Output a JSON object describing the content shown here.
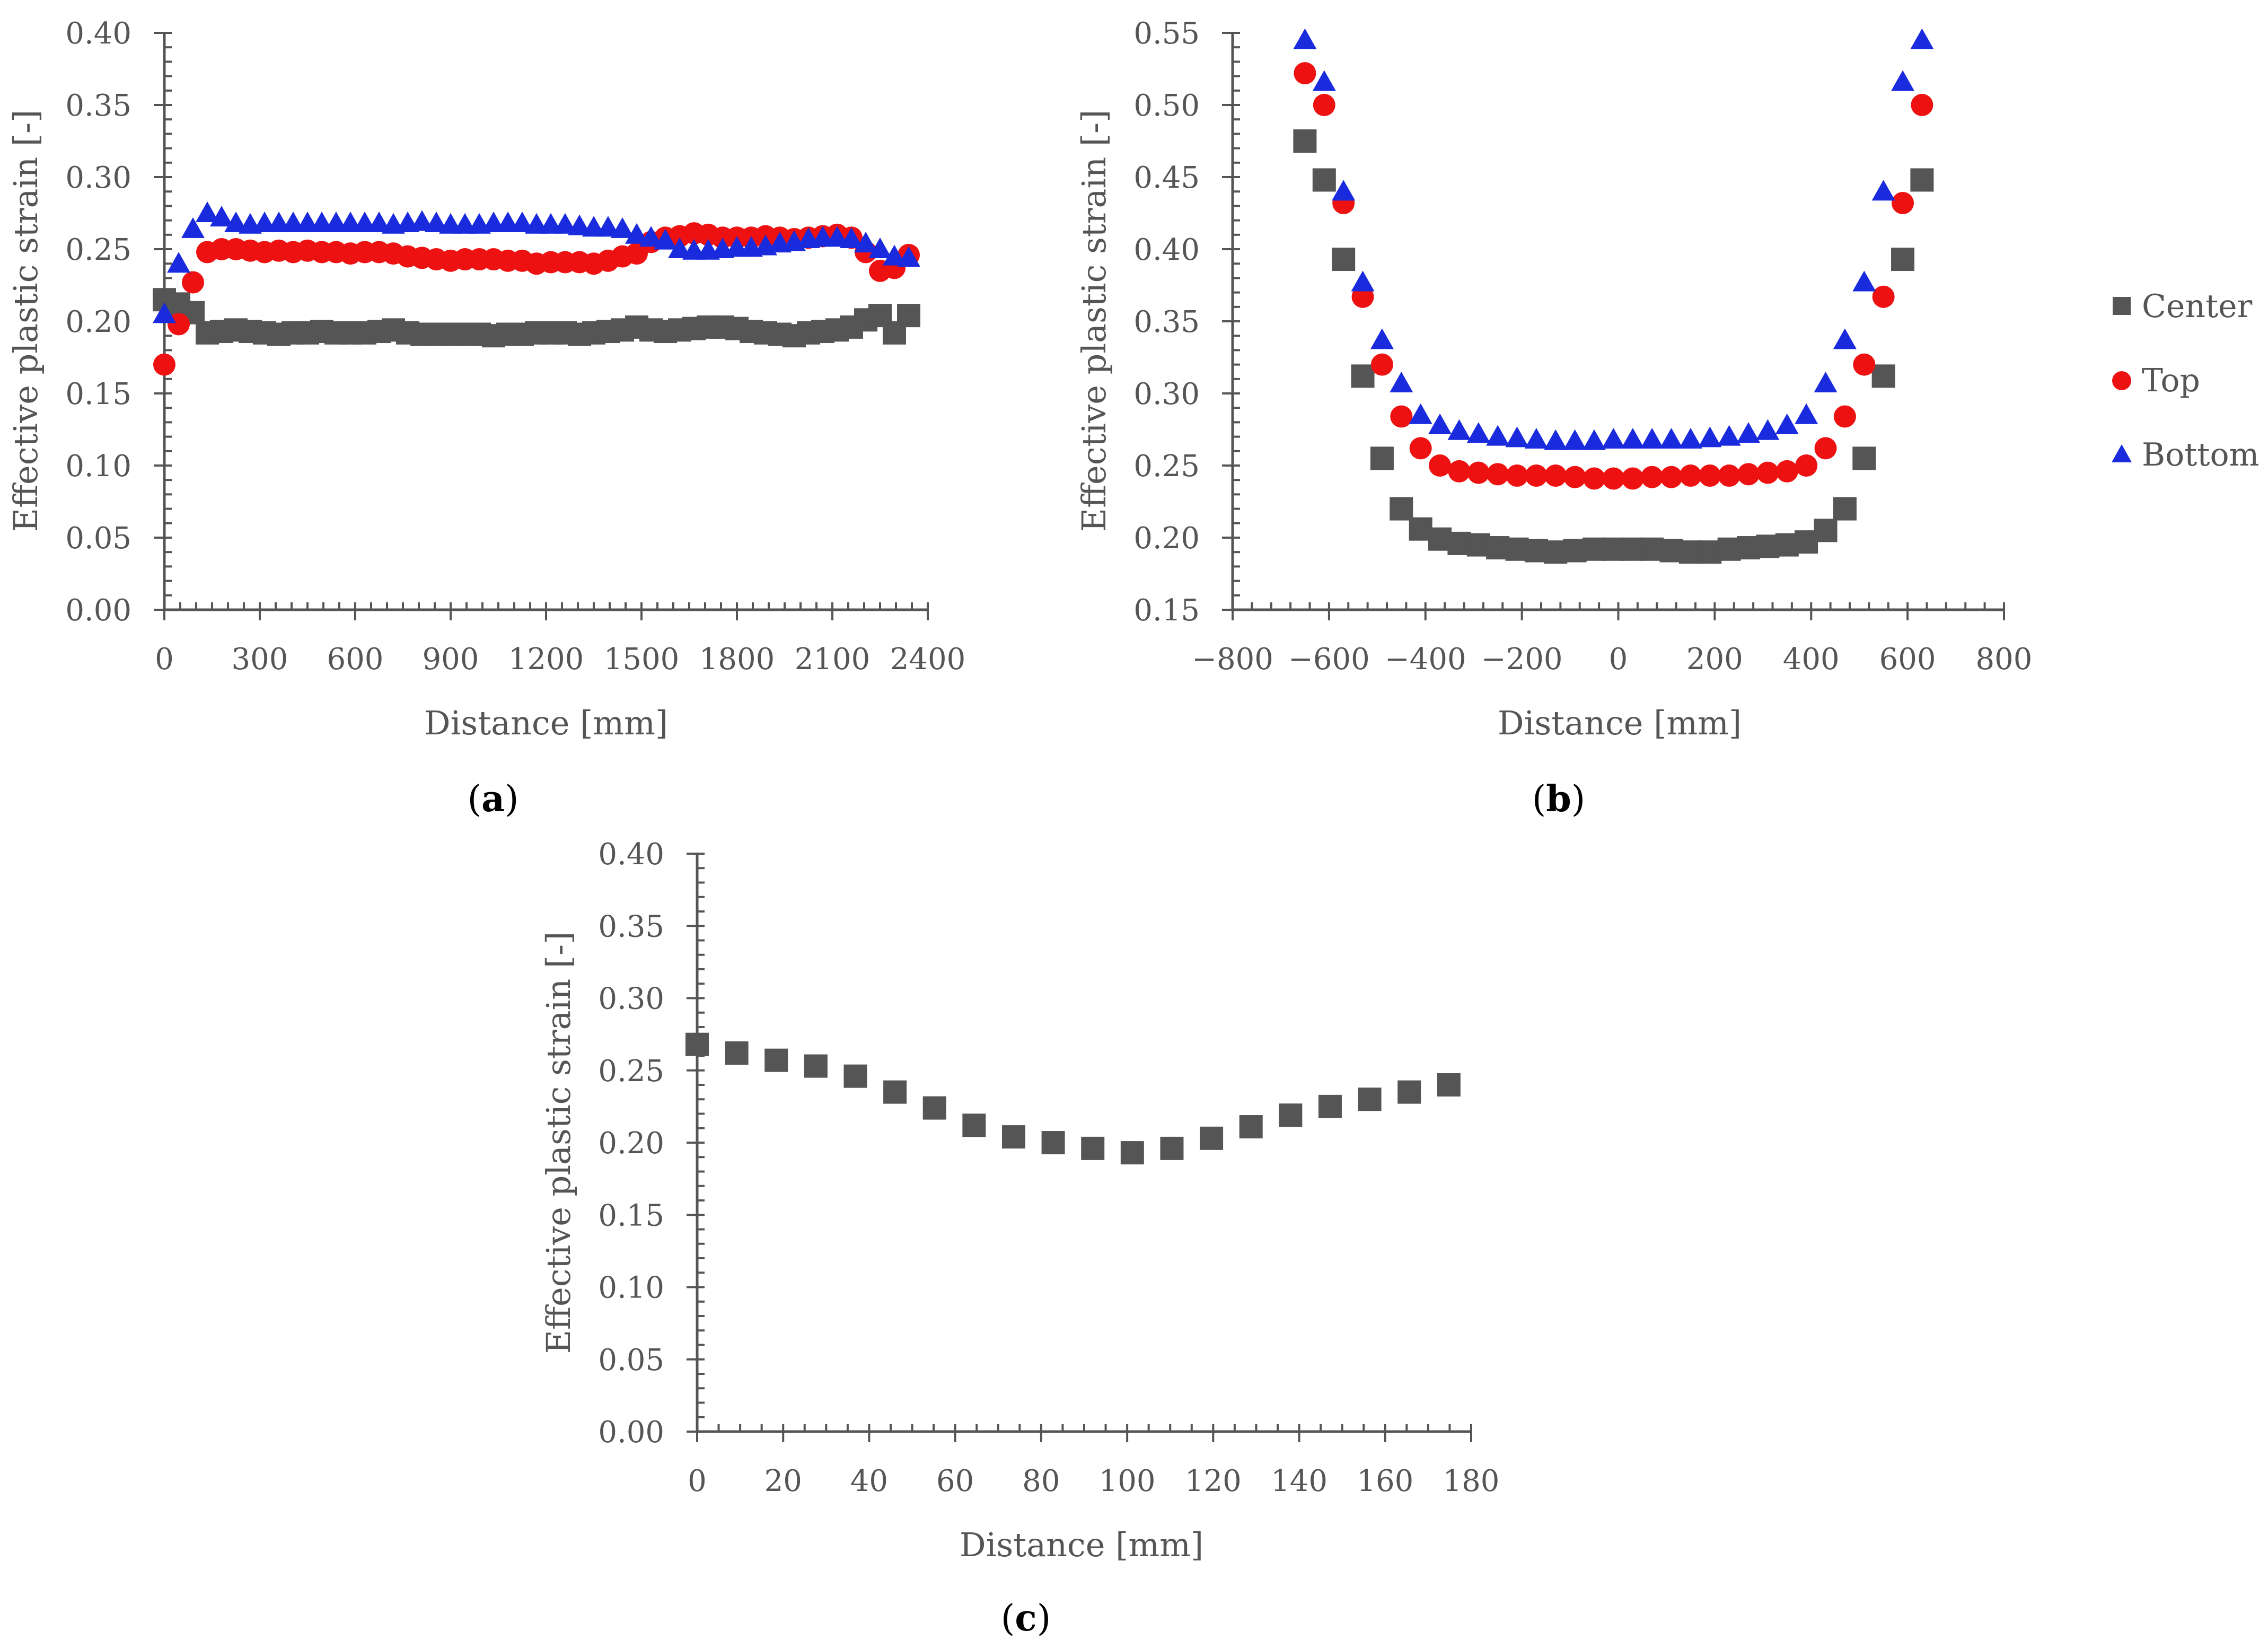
{
  "colors": {
    "center": "#555555",
    "top": "#ee1111",
    "bottom": "#1a2bdd",
    "axis": "#555555"
  },
  "legend": {
    "items": [
      {
        "key": "center",
        "label": "Center",
        "marker": "square"
      },
      {
        "key": "top",
        "label": "Top",
        "marker": "circle"
      },
      {
        "key": "bottom",
        "label": "Bottom",
        "marker": "triangle"
      }
    ]
  },
  "chart_data": [
    {
      "id": "a",
      "panel_label": "a",
      "type": "scatter",
      "xlabel": "Distance [mm]",
      "ylabel": "Effective plastic strain [-]",
      "xlim": [
        0,
        2400
      ],
      "ylim": [
        0.0,
        0.4
      ],
      "x_major_ticks": [
        0,
        300,
        600,
        900,
        1200,
        1500,
        1800,
        2100,
        2400
      ],
      "x_tick_labels": [
        "0",
        "300",
        "600",
        "900",
        "1200",
        "1500",
        "1800",
        "2100",
        "2400"
      ],
      "x_minor_step": 50,
      "y_major_ticks": [
        0.0,
        0.05,
        0.1,
        0.15,
        0.2,
        0.25,
        0.3,
        0.35,
        0.4
      ],
      "y_tick_labels": [
        "0.00",
        "0.05",
        "0.10",
        "0.15",
        "0.20",
        "0.25",
        "0.30",
        "0.35",
        "0.40"
      ],
      "y_minor_step": 0.01,
      "series": [
        {
          "name": "Center",
          "key": "center",
          "marker": "square",
          "x": [
            0,
            45,
            90,
            135,
            180,
            225,
            270,
            315,
            360,
            405,
            450,
            495,
            540,
            585,
            630,
            675,
            720,
            765,
            810,
            855,
            900,
            945,
            990,
            1035,
            1080,
            1125,
            1170,
            1215,
            1260,
            1305,
            1350,
            1395,
            1440,
            1485,
            1530,
            1575,
            1620,
            1665,
            1710,
            1755,
            1800,
            1845,
            1890,
            1935,
            1980,
            2025,
            2070,
            2115,
            2160,
            2205,
            2250,
            2295,
            2340
          ],
          "y": [
            0.215,
            0.212,
            0.206,
            0.192,
            0.193,
            0.194,
            0.193,
            0.192,
            0.191,
            0.192,
            0.192,
            0.193,
            0.192,
            0.192,
            0.192,
            0.193,
            0.194,
            0.192,
            0.191,
            0.191,
            0.191,
            0.191,
            0.191,
            0.19,
            0.191,
            0.191,
            0.192,
            0.192,
            0.192,
            0.191,
            0.192,
            0.193,
            0.194,
            0.196,
            0.194,
            0.193,
            0.194,
            0.195,
            0.196,
            0.196,
            0.195,
            0.193,
            0.192,
            0.191,
            0.19,
            0.192,
            0.193,
            0.194,
            0.196,
            0.201,
            0.204,
            0.192,
            0.204
          ]
        },
        {
          "name": "Top",
          "key": "top",
          "marker": "circle",
          "x": [
            0,
            45,
            90,
            135,
            180,
            225,
            270,
            315,
            360,
            405,
            450,
            495,
            540,
            585,
            630,
            675,
            720,
            765,
            810,
            855,
            900,
            945,
            990,
            1035,
            1080,
            1125,
            1170,
            1215,
            1260,
            1305,
            1350,
            1395,
            1440,
            1485,
            1530,
            1575,
            1620,
            1665,
            1710,
            1755,
            1800,
            1845,
            1890,
            1935,
            1980,
            2025,
            2070,
            2115,
            2160,
            2205,
            2250,
            2295,
            2340
          ],
          "y": [
            0.17,
            0.198,
            0.227,
            0.248,
            0.25,
            0.25,
            0.249,
            0.248,
            0.249,
            0.248,
            0.249,
            0.248,
            0.248,
            0.247,
            0.248,
            0.248,
            0.247,
            0.245,
            0.244,
            0.243,
            0.242,
            0.243,
            0.243,
            0.243,
            0.242,
            0.242,
            0.24,
            0.241,
            0.241,
            0.241,
            0.24,
            0.242,
            0.245,
            0.247,
            0.255,
            0.258,
            0.259,
            0.261,
            0.26,
            0.258,
            0.258,
            0.258,
            0.259,
            0.258,
            0.257,
            0.258,
            0.259,
            0.26,
            0.258,
            0.248,
            0.235,
            0.237,
            0.246
          ]
        },
        {
          "name": "Bottom",
          "key": "bottom",
          "marker": "triangle",
          "x": [
            0,
            45,
            90,
            135,
            180,
            225,
            270,
            315,
            360,
            405,
            450,
            495,
            540,
            585,
            630,
            675,
            720,
            765,
            810,
            855,
            900,
            945,
            990,
            1035,
            1080,
            1125,
            1170,
            1215,
            1260,
            1305,
            1350,
            1395,
            1440,
            1485,
            1530,
            1575,
            1620,
            1665,
            1710,
            1755,
            1800,
            1845,
            1890,
            1935,
            1980,
            2025,
            2070,
            2115,
            2160,
            2205,
            2250,
            2295,
            2340
          ],
          "y": [
            0.205,
            0.24,
            0.264,
            0.275,
            0.272,
            0.268,
            0.267,
            0.268,
            0.268,
            0.268,
            0.268,
            0.268,
            0.268,
            0.268,
            0.268,
            0.268,
            0.267,
            0.268,
            0.269,
            0.268,
            0.267,
            0.267,
            0.267,
            0.268,
            0.268,
            0.268,
            0.267,
            0.267,
            0.267,
            0.266,
            0.265,
            0.265,
            0.264,
            0.26,
            0.258,
            0.256,
            0.25,
            0.249,
            0.249,
            0.25,
            0.251,
            0.251,
            0.252,
            0.254,
            0.255,
            0.257,
            0.258,
            0.258,
            0.257,
            0.254,
            0.25,
            0.245,
            0.244
          ]
        }
      ]
    },
    {
      "id": "b",
      "panel_label": "b",
      "type": "scatter",
      "xlabel": "Distance [mm]",
      "ylabel": "Effective plastic strain [-]",
      "xlim": [
        -800,
        800
      ],
      "ylim": [
        0.15,
        0.55
      ],
      "x_major_ticks": [
        -800,
        -600,
        -400,
        -200,
        0,
        200,
        400,
        600,
        800
      ],
      "x_tick_labels": [
        "−800",
        "−600",
        "−400",
        "−200",
        "0",
        "200",
        "400",
        "600",
        "800"
      ],
      "x_minor_step": 40,
      "y_major_ticks": [
        0.15,
        0.2,
        0.25,
        0.3,
        0.35,
        0.4,
        0.45,
        0.5,
        0.55
      ],
      "y_tick_labels": [
        "0.15",
        "0.20",
        "0.25",
        "0.30",
        "0.35",
        "0.40",
        "0.45",
        "0.50",
        "0.55"
      ],
      "y_minor_step": 0.01,
      "series": [
        {
          "name": "Center",
          "key": "center",
          "marker": "square",
          "x": [
            -650,
            -610,
            -570,
            -530,
            -490,
            -450,
            -410,
            -370,
            -330,
            -290,
            -250,
            -210,
            -170,
            -130,
            -90,
            -50,
            -10,
            30,
            70,
            110,
            150,
            190,
            230,
            270,
            310,
            350,
            390,
            430,
            470,
            510,
            550,
            590,
            630
          ],
          "y": [
            0.475,
            0.448,
            0.393,
            0.312,
            0.255,
            0.22,
            0.206,
            0.199,
            0.196,
            0.195,
            0.193,
            0.192,
            0.191,
            0.19,
            0.191,
            0.192,
            0.192,
            0.192,
            0.192,
            0.191,
            0.19,
            0.19,
            0.192,
            0.193,
            0.194,
            0.195,
            0.197,
            0.205,
            0.22,
            0.255,
            0.312,
            0.393,
            0.448
          ]
        },
        {
          "name": "Top",
          "key": "top",
          "marker": "circle",
          "x": [
            -650,
            -610,
            -570,
            -530,
            -490,
            -450,
            -410,
            -370,
            -330,
            -290,
            -250,
            -210,
            -170,
            -130,
            -90,
            -50,
            -10,
            30,
            70,
            110,
            150,
            190,
            230,
            270,
            310,
            350,
            390,
            430,
            470,
            510,
            550,
            590,
            630
          ],
          "y": [
            0.522,
            0.5,
            0.432,
            0.367,
            0.32,
            0.284,
            0.262,
            0.25,
            0.246,
            0.245,
            0.244,
            0.243,
            0.243,
            0.243,
            0.242,
            0.241,
            0.241,
            0.241,
            0.242,
            0.242,
            0.243,
            0.243,
            0.243,
            0.244,
            0.245,
            0.246,
            0.25,
            0.262,
            0.284,
            0.32,
            0.367,
            0.432,
            0.5
          ]
        },
        {
          "name": "Bottom",
          "key": "bottom",
          "marker": "triangle",
          "x": [
            -650,
            -610,
            -570,
            -530,
            -490,
            -450,
            -410,
            -370,
            -330,
            -290,
            -250,
            -210,
            -170,
            -130,
            -90,
            -50,
            -10,
            30,
            70,
            110,
            150,
            190,
            230,
            270,
            310,
            350,
            390,
            430,
            470,
            510,
            550,
            590,
            630
          ],
          "y": [
            0.545,
            0.516,
            0.44,
            0.377,
            0.337,
            0.307,
            0.285,
            0.278,
            0.274,
            0.272,
            0.27,
            0.269,
            0.268,
            0.267,
            0.267,
            0.267,
            0.268,
            0.268,
            0.268,
            0.268,
            0.268,
            0.269,
            0.27,
            0.272,
            0.274,
            0.278,
            0.285,
            0.307,
            0.337,
            0.377,
            0.44,
            0.516,
            0.545
          ]
        }
      ]
    },
    {
      "id": "c",
      "panel_label": "c",
      "type": "scatter",
      "xlabel": "Distance [mm]",
      "ylabel": "Effective plastic strain [-]",
      "xlim": [
        0,
        180
      ],
      "ylim": [
        0.0,
        0.4
      ],
      "x_major_ticks": [
        0,
        20,
        40,
        60,
        80,
        100,
        120,
        140,
        160,
        180
      ],
      "x_tick_labels": [
        "0",
        "20",
        "40",
        "60",
        "80",
        "100",
        "120",
        "140",
        "160",
        "180"
      ],
      "x_minor_step": 5,
      "y_major_ticks": [
        0.0,
        0.05,
        0.1,
        0.15,
        0.2,
        0.25,
        0.3,
        0.35,
        0.4
      ],
      "y_tick_labels": [
        "0.00",
        "0.05",
        "0.10",
        "0.15",
        "0.20",
        "0.25",
        "0.30",
        "0.35",
        "0.40"
      ],
      "y_minor_step": 0.01,
      "series": [
        {
          "name": "Center",
          "key": "center",
          "marker": "square",
          "x": [
            0,
            9.2,
            18.4,
            27.6,
            36.8,
            46,
            55.2,
            64.4,
            73.6,
            82.8,
            92,
            101.2,
            110.4,
            119.6,
            128.8,
            138,
            147.2,
            156.4,
            165.6,
            174.8
          ],
          "y": [
            0.268,
            0.262,
            0.257,
            0.253,
            0.246,
            0.235,
            0.224,
            0.212,
            0.204,
            0.2,
            0.196,
            0.193,
            0.196,
            0.203,
            0.211,
            0.219,
            0.225,
            0.23,
            0.235,
            0.24
          ]
        }
      ]
    }
  ]
}
